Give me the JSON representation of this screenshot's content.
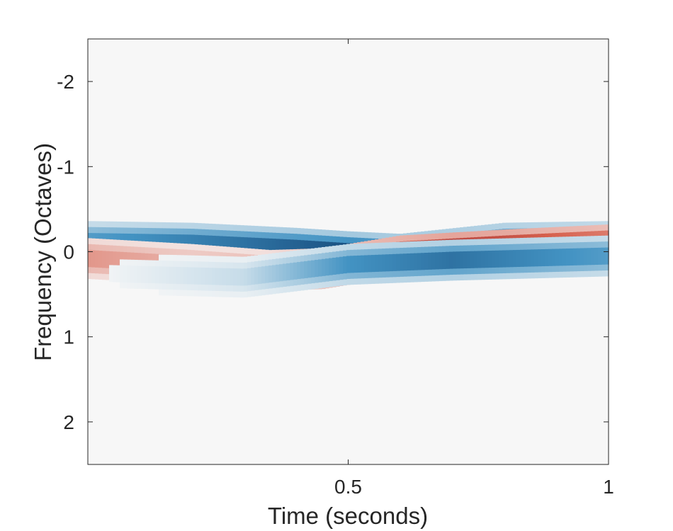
{
  "chart_data": {
    "type": "heatmap",
    "title": "",
    "xlabel": "Time (seconds)",
    "ylabel": "Frequency (Octaves)",
    "xlim": [
      0,
      1
    ],
    "ylim": [
      -2.5,
      2.5
    ],
    "y_reversed": true,
    "x_ticks": [
      0.5,
      1
    ],
    "x_tick_labels": [
      "0.5",
      "1"
    ],
    "y_ticks": [
      -2,
      -1,
      0,
      1,
      2
    ],
    "y_tick_labels": [
      "-2",
      "-1",
      "0",
      "1",
      "2"
    ],
    "grid": false,
    "colormap": "diverging red-white-blue",
    "colors": {
      "positive": "#67001f",
      "negative": "#053061",
      "neutral": "#f7f7f7"
    },
    "bands": [
      {
        "sign": "negative",
        "path": [
          [
            0,
            -0.12
          ],
          [
            0.2,
            -0.1
          ],
          [
            0.4,
            -0.04
          ],
          [
            0.5,
            0.0
          ],
          [
            0.6,
            0.03
          ],
          [
            0.8,
            -0.1
          ],
          [
            1,
            -0.12
          ]
        ],
        "amplitude": [
          [
            0,
            0.5
          ],
          [
            0.3,
            0.7
          ],
          [
            0.5,
            0.85
          ],
          [
            0.7,
            0.75
          ],
          [
            1,
            0.55
          ]
        ]
      },
      {
        "sign": "positive",
        "path": [
          [
            0,
            0.08
          ],
          [
            0.2,
            0.15
          ],
          [
            0.35,
            0.22
          ],
          [
            0.45,
            0.2
          ],
          [
            0.5,
            0.15
          ],
          [
            0.6,
            0.05
          ],
          [
            0.8,
            -0.02
          ],
          [
            1,
            -0.08
          ]
        ],
        "amplitude": [
          [
            0,
            0.35
          ],
          [
            0.2,
            0.25
          ],
          [
            0.35,
            0.3
          ],
          [
            0.45,
            0.65
          ],
          [
            0.7,
            1.0
          ],
          [
            0.8,
            0.95
          ],
          [
            1,
            0.7
          ]
        ]
      },
      {
        "sign": "negative",
        "path": [
          [
            0,
            0.25
          ],
          [
            0.3,
            0.3
          ],
          [
            0.5,
            0.15
          ],
          [
            0.7,
            0.1
          ],
          [
            1,
            0.05
          ]
        ],
        "amplitude": [
          [
            0,
            0.0
          ],
          [
            0.3,
            0.15
          ],
          [
            0.5,
            0.55
          ],
          [
            0.7,
            0.7
          ],
          [
            1,
            0.5
          ]
        ]
      }
    ]
  }
}
